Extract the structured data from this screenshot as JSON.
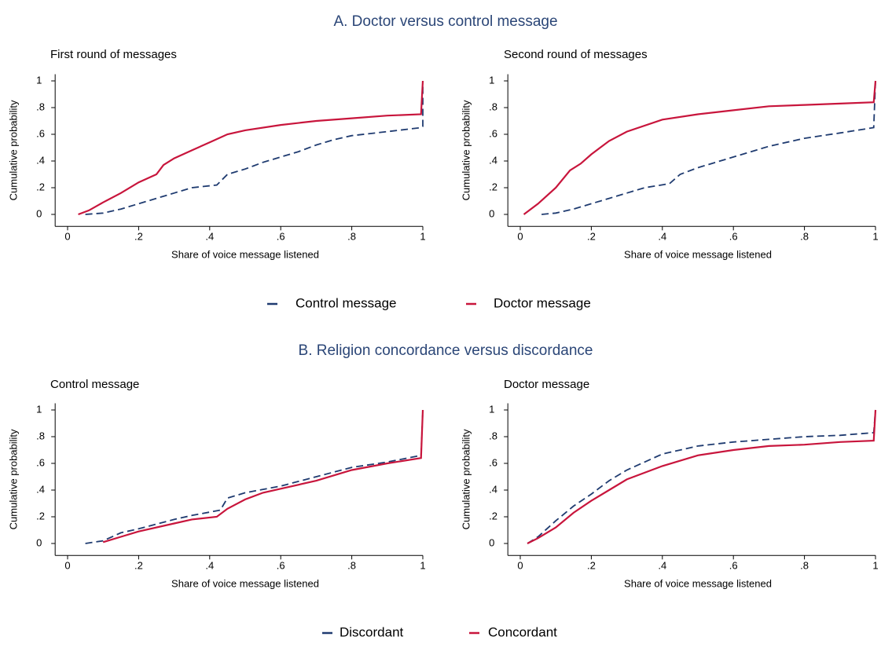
{
  "sections": [
    {
      "title": "A. Doctor versus control message"
    },
    {
      "title": "B. Religion concordance versus discordance"
    }
  ],
  "chart_data": [
    {
      "type": "line",
      "title": "First round of messages",
      "xlabel": "Share of voice message listened",
      "ylabel": "Cumulative probability",
      "xlim": [
        -0.035,
        1
      ],
      "ylim": [
        -0.09,
        1.05
      ],
      "xticks": [
        0,
        {
          "value": 0.2,
          "label": ".2"
        },
        {
          "value": 0.4,
          "label": ".4"
        },
        {
          "value": 0.6,
          "label": ".6"
        },
        {
          "value": 0.8,
          "label": ".8"
        },
        1
      ],
      "yticks": [
        0,
        {
          "value": 0.2,
          "label": ".2"
        },
        {
          "value": 0.4,
          "label": ".4"
        },
        {
          "value": 0.6,
          "label": ".6"
        },
        {
          "value": 0.8,
          "label": ".8"
        },
        1
      ],
      "series": [
        {
          "name": "Control message",
          "color": "#1f3b70",
          "linestyle": "dashed",
          "x": [
            0.05,
            0.1,
            0.15,
            0.2,
            0.25,
            0.3,
            0.35,
            0.42,
            0.45,
            0.5,
            0.55,
            0.6,
            0.65,
            0.7,
            0.75,
            0.8,
            0.9,
            0.995,
            1,
            1
          ],
          "values": [
            0,
            0.01,
            0.04,
            0.08,
            0.12,
            0.16,
            0.2,
            0.22,
            0.3,
            0.34,
            0.39,
            0.43,
            0.47,
            0.52,
            0.56,
            0.59,
            0.62,
            0.65,
            0.66,
            1
          ]
        },
        {
          "name": "Doctor message",
          "color": "#c8153c",
          "linestyle": "solid",
          "x": [
            0.03,
            0.06,
            0.1,
            0.15,
            0.2,
            0.25,
            0.27,
            0.3,
            0.35,
            0.4,
            0.45,
            0.5,
            0.6,
            0.7,
            0.8,
            0.9,
            0.995,
            1
          ],
          "values": [
            0,
            0.03,
            0.09,
            0.16,
            0.24,
            0.3,
            0.37,
            0.42,
            0.48,
            0.54,
            0.6,
            0.63,
            0.67,
            0.7,
            0.72,
            0.74,
            0.75,
            1
          ]
        }
      ]
    },
    {
      "type": "line",
      "title": "Second round of messages",
      "xlabel": "Share of voice message listened",
      "ylabel": "Cumulative probability",
      "xlim": [
        -0.035,
        1
      ],
      "ylim": [
        -0.09,
        1.05
      ],
      "xticks": [
        0,
        {
          "value": 0.2,
          "label": ".2"
        },
        {
          "value": 0.4,
          "label": ".4"
        },
        {
          "value": 0.6,
          "label": ".6"
        },
        {
          "value": 0.8,
          "label": ".8"
        },
        1
      ],
      "yticks": [
        0,
        {
          "value": 0.2,
          "label": ".2"
        },
        {
          "value": 0.4,
          "label": ".4"
        },
        {
          "value": 0.6,
          "label": ".6"
        },
        {
          "value": 0.8,
          "label": ".8"
        },
        1
      ],
      "series": [
        {
          "name": "Control message",
          "color": "#1f3b70",
          "linestyle": "dashed",
          "x": [
            0.06,
            0.1,
            0.15,
            0.2,
            0.25,
            0.3,
            0.35,
            0.42,
            0.45,
            0.5,
            0.55,
            0.6,
            0.65,
            0.7,
            0.8,
            0.9,
            0.995,
            1
          ],
          "values": [
            0,
            0.01,
            0.04,
            0.08,
            0.12,
            0.16,
            0.2,
            0.23,
            0.3,
            0.35,
            0.39,
            0.43,
            0.47,
            0.51,
            0.57,
            0.61,
            0.65,
            1
          ]
        },
        {
          "name": "Doctor message",
          "color": "#c8153c",
          "linestyle": "solid",
          "x": [
            0.01,
            0.05,
            0.1,
            0.14,
            0.17,
            0.2,
            0.25,
            0.3,
            0.4,
            0.5,
            0.6,
            0.7,
            0.8,
            0.9,
            0.995,
            1
          ],
          "values": [
            0,
            0.08,
            0.2,
            0.33,
            0.38,
            0.45,
            0.55,
            0.62,
            0.71,
            0.75,
            0.78,
            0.81,
            0.82,
            0.83,
            0.84,
            1
          ]
        }
      ]
    },
    {
      "type": "line",
      "title": "Control message",
      "xlabel": "Share of voice message listened",
      "ylabel": "Cumulative probability",
      "xlim": [
        -0.035,
        1
      ],
      "ylim": [
        -0.09,
        1.05
      ],
      "xticks": [
        0,
        {
          "value": 0.2,
          "label": ".2"
        },
        {
          "value": 0.4,
          "label": ".4"
        },
        {
          "value": 0.6,
          "label": ".6"
        },
        {
          "value": 0.8,
          "label": ".8"
        },
        1
      ],
      "yticks": [
        0,
        {
          "value": 0.2,
          "label": ".2"
        },
        {
          "value": 0.4,
          "label": ".4"
        },
        {
          "value": 0.6,
          "label": ".6"
        },
        {
          "value": 0.8,
          "label": ".8"
        },
        1
      ],
      "series": [
        {
          "name": "Discordant",
          "color": "#1f3b70",
          "linestyle": "dashed",
          "x": [
            0.05,
            0.1,
            0.15,
            0.2,
            0.3,
            0.35,
            0.43,
            0.45,
            0.5,
            0.6,
            0.7,
            0.8,
            0.9,
            0.995,
            1
          ],
          "values": [
            0,
            0.02,
            0.08,
            0.11,
            0.18,
            0.21,
            0.25,
            0.34,
            0.38,
            0.43,
            0.5,
            0.57,
            0.61,
            0.66,
            1
          ]
        },
        {
          "name": "Concordant",
          "color": "#c8153c",
          "linestyle": "solid",
          "x": [
            0.1,
            0.15,
            0.2,
            0.3,
            0.35,
            0.42,
            0.45,
            0.5,
            0.55,
            0.6,
            0.7,
            0.8,
            0.9,
            0.995,
            1
          ],
          "values": [
            0.01,
            0.05,
            0.09,
            0.15,
            0.18,
            0.2,
            0.26,
            0.33,
            0.38,
            0.41,
            0.47,
            0.55,
            0.6,
            0.64,
            1
          ]
        }
      ]
    },
    {
      "type": "line",
      "title": "Doctor message",
      "xlabel": "Share of voice message listened",
      "ylabel": "Cumulative probability",
      "xlim": [
        -0.035,
        1
      ],
      "ylim": [
        -0.09,
        1.05
      ],
      "xticks": [
        0,
        {
          "value": 0.2,
          "label": ".2"
        },
        {
          "value": 0.4,
          "label": ".4"
        },
        {
          "value": 0.6,
          "label": ".6"
        },
        {
          "value": 0.8,
          "label": ".8"
        },
        1
      ],
      "yticks": [
        0,
        {
          "value": 0.2,
          "label": ".2"
        },
        {
          "value": 0.4,
          "label": ".4"
        },
        {
          "value": 0.6,
          "label": ".6"
        },
        {
          "value": 0.8,
          "label": ".8"
        },
        1
      ],
      "series": [
        {
          "name": "Discordant",
          "color": "#1f3b70",
          "linestyle": "dashed",
          "x": [
            0.02,
            0.05,
            0.1,
            0.15,
            0.2,
            0.25,
            0.3,
            0.4,
            0.5,
            0.6,
            0.7,
            0.8,
            0.9,
            0.995,
            1
          ],
          "values": [
            0,
            0.05,
            0.17,
            0.28,
            0.37,
            0.47,
            0.55,
            0.67,
            0.73,
            0.76,
            0.78,
            0.8,
            0.81,
            0.83,
            1
          ]
        },
        {
          "name": "Concordant",
          "color": "#c8153c",
          "linestyle": "solid",
          "x": [
            0.02,
            0.05,
            0.1,
            0.15,
            0.2,
            0.25,
            0.3,
            0.4,
            0.5,
            0.6,
            0.7,
            0.8,
            0.9,
            0.995,
            1
          ],
          "values": [
            0,
            0.04,
            0.12,
            0.23,
            0.32,
            0.4,
            0.48,
            0.58,
            0.66,
            0.7,
            0.73,
            0.74,
            0.76,
            0.77,
            1
          ]
        }
      ]
    }
  ]
}
